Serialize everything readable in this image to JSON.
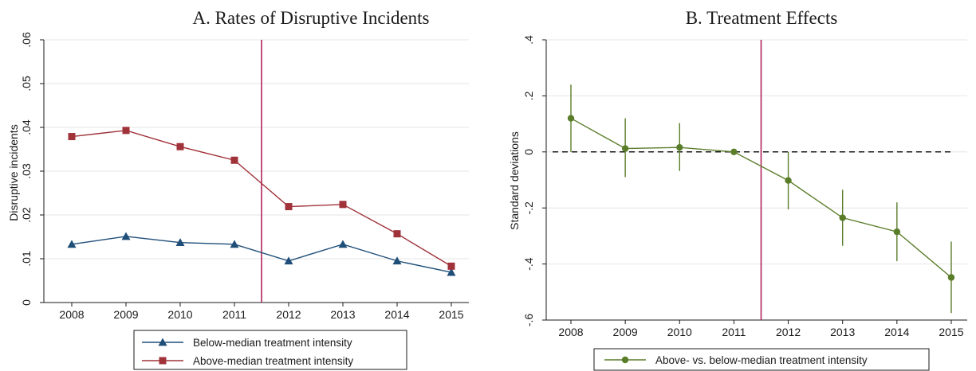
{
  "chart_data": [
    {
      "type": "line",
      "title": "A. Rates of Disruptive Incidents",
      "xlabel": "",
      "ylabel": "Disruptive incidents",
      "x": [
        2008,
        2009,
        2010,
        2011,
        2012,
        2013,
        2014,
        2015
      ],
      "x_ticks": [
        "2008",
        "2009",
        "2010",
        "2011",
        "2012",
        "2013",
        "2014",
        "2015"
      ],
      "ylim": [
        0,
        0.06
      ],
      "y_ticks": [
        0,
        0.01,
        0.02,
        0.03,
        0.04,
        0.05,
        0.06
      ],
      "y_tick_labels": [
        "0",
        ".01",
        ".02",
        ".03",
        ".04",
        ".05",
        ".06"
      ],
      "grid": "horizontal",
      "reference_line_x": 2011.5,
      "legend_position": "bottom",
      "series": [
        {
          "name": "Below-median treatment intensity",
          "marker": "triangle",
          "color": "#1f4e79",
          "values": [
            0.0133,
            0.0151,
            0.0137,
            0.0133,
            0.0095,
            0.0133,
            0.0095,
            0.0069
          ]
        },
        {
          "name": "Above-median treatment intensity",
          "marker": "square",
          "color": "#a0323a",
          "values": [
            0.0379,
            0.0393,
            0.0356,
            0.0325,
            0.0219,
            0.0224,
            0.0157,
            0.0083
          ]
        }
      ]
    },
    {
      "type": "line",
      "title": "B. Treatment Effects",
      "xlabel": "",
      "ylabel": "Standard deviations",
      "x": [
        2008,
        2009,
        2010,
        2011,
        2012,
        2013,
        2014,
        2015
      ],
      "x_ticks": [
        "2008",
        "2009",
        "2010",
        "2011",
        "2012",
        "2013",
        "2014",
        "2015"
      ],
      "ylim": [
        -0.6,
        0.4
      ],
      "y_ticks": [
        -0.6,
        -0.4,
        -0.2,
        0,
        0.2,
        0.4
      ],
      "y_tick_labels": [
        "-.6",
        "-.4",
        "-.2",
        "0",
        ".2",
        ".4"
      ],
      "grid": "horizontal",
      "reference_line_x": 2011.5,
      "zero_line": "dashed",
      "legend_position": "bottom",
      "series": [
        {
          "name": "Above- vs. below-median treatment intensity",
          "marker": "circle",
          "color": "#5a7d2a",
          "values": [
            0.12,
            0.012,
            0.016,
            0.0,
            -0.102,
            -0.235,
            -0.285,
            -0.448
          ],
          "ci_low": [
            0.0,
            -0.09,
            -0.068,
            0.0,
            -0.205,
            -0.335,
            -0.39,
            -0.575
          ],
          "ci_high": [
            0.24,
            0.12,
            0.103,
            0.0,
            0.0,
            -0.135,
            -0.18,
            -0.32
          ]
        }
      ]
    }
  ],
  "colors": {
    "reference_line": "#b0245a",
    "grid": "#e6e6e6",
    "axis": "#1a1a1a",
    "zero_line": "#1a1a1a"
  }
}
